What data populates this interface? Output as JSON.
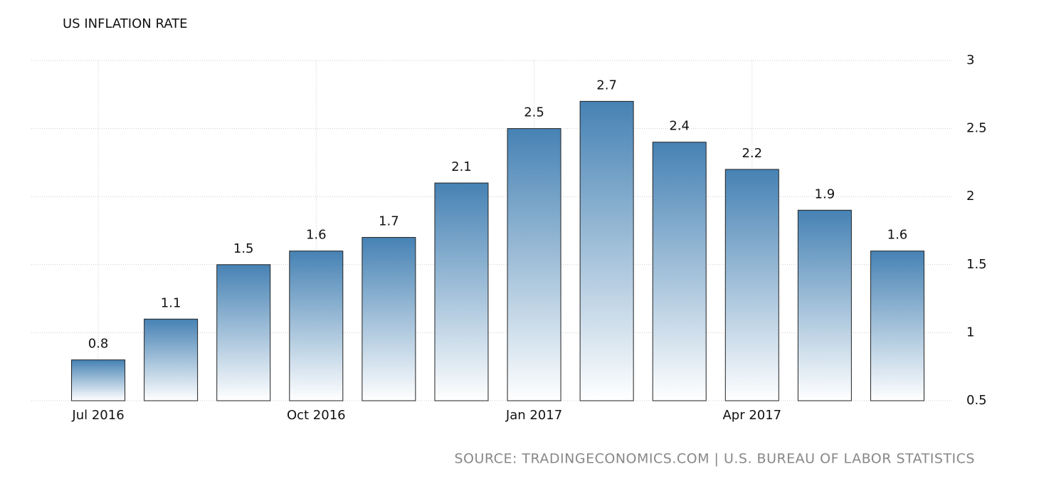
{
  "chart_data": {
    "type": "bar",
    "title": "US INFLATION RATE",
    "source": "SOURCE: TRADINGECONOMICS.COM | U.S. BUREAU OF LABOR STATISTICS",
    "categories": [
      "Jul 2016",
      null,
      null,
      "Oct 2016",
      null,
      null,
      "Jan 2017",
      null,
      null,
      "Apr 2017",
      null,
      null
    ],
    "values": [
      0.8,
      1.1,
      1.5,
      1.6,
      1.7,
      2.1,
      2.5,
      2.7,
      2.4,
      2.2,
      1.9,
      1.6
    ],
    "color": "#4682b4",
    "ylim": [
      0.5,
      3
    ],
    "yticks": [
      0.5,
      1,
      1.5,
      2,
      2.5,
      3
    ],
    "grid": true,
    "y_axis_side": "right"
  }
}
